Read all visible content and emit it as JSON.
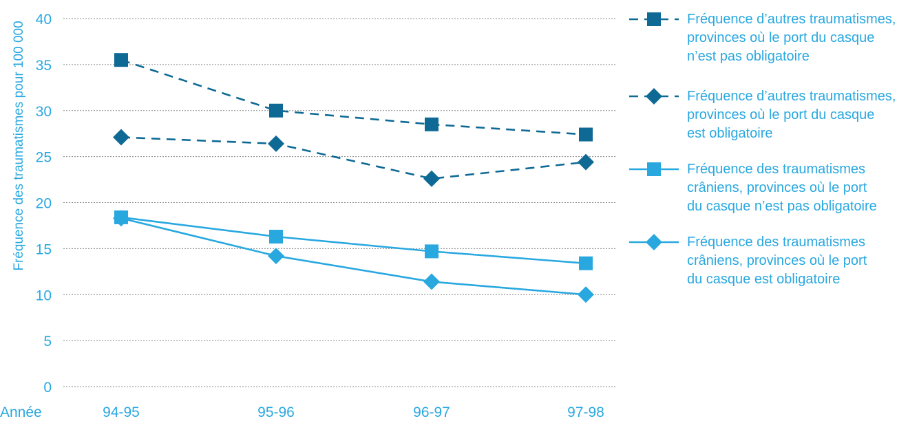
{
  "chart_data": {
    "type": "line",
    "title": "",
    "xlabel": "Année",
    "ylabel": "Fréquence des traumatismes pour 100 000",
    "categories": [
      "94-95",
      "95-96",
      "96-97",
      "97-98"
    ],
    "ylim": [
      0,
      40
    ],
    "yticks": [
      0,
      5,
      10,
      15,
      20,
      25,
      30,
      35,
      40
    ],
    "grid": "horizontal dotted",
    "legend_position": "right",
    "series": [
      {
        "name": "Fréquence d’autres traumatismes, provinces où le port du casque n’est pas obligatoire",
        "name_lines": [
          "Fréquence d’autres traumatismes,",
          "provinces où le port du casque",
          "n’est pas obligatoire"
        ],
        "values": [
          35.5,
          30.0,
          28.5,
          27.4
        ],
        "color": "#0e6a95",
        "line": "dashed",
        "marker": "square"
      },
      {
        "name": "Fréquence d’autres traumatismes, provinces où le port du casque est obligatoire",
        "name_lines": [
          "Fréquence d’autres traumatismes,",
          "provinces où le port du casque",
          "est obligatoire"
        ],
        "values": [
          27.1,
          26.4,
          22.6,
          24.4
        ],
        "color": "#0e6a95",
        "line": "dashed",
        "marker": "diamond"
      },
      {
        "name": "Fréquence des traumatismes crâniens, provinces où le port du casque n’est pas obligatoire",
        "name_lines": [
          "Fréquence des traumatismes",
          "crâniens, provinces où le port",
          "du casque n’est pas obligatoire"
        ],
        "values": [
          18.4,
          16.3,
          14.7,
          13.4
        ],
        "color": "#29a8e0",
        "line": "solid",
        "marker": "square"
      },
      {
        "name": "Fréquence des traumatismes crâniens, provinces où le port du casque est obligatoire",
        "name_lines": [
          "Fréquence des traumatismes",
          "crâniens, provinces où le port",
          "du casque est obligatoire"
        ],
        "values": [
          18.3,
          14.2,
          11.4,
          10.0
        ],
        "color": "#29a8e0",
        "line": "solid",
        "marker": "diamond"
      }
    ]
  }
}
